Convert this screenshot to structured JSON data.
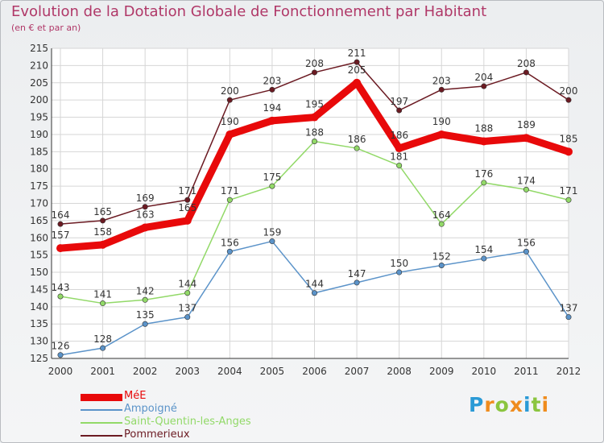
{
  "title": "Evolution de la Dotation Globale de Fonctionnement par Habitant",
  "subtitle": "(en € et par an)",
  "logo": {
    "text": "Proxiti",
    "colors": [
      "#2a9ad6",
      "#ef8c1e",
      "#8bc53f",
      "#ef8c1e",
      "#2a9ad6",
      "#8bc53f",
      "#ef8c1e"
    ]
  },
  "chart_data": {
    "type": "line",
    "title": "Evolution de la Dotation Globale de Fonctionnement par Habitant",
    "subtitle": "(en € et par an)",
    "categories": [
      "2000",
      "2001",
      "2002",
      "2003",
      "2004",
      "2005",
      "2006",
      "2007",
      "2008",
      "2009",
      "2010",
      "2011",
      "2012"
    ],
    "ylim": [
      125,
      215
    ],
    "ytick_step": 5,
    "grid": true,
    "legend_position": "bottom-left",
    "series": [
      {
        "name": "MéE",
        "color": "#e8090a",
        "values": [
          157,
          158,
          163,
          165,
          190,
          194,
          195,
          205,
          186,
          190,
          188,
          189,
          185
        ]
      },
      {
        "name": "Ampoigné",
        "color": "#5b93c9",
        "values": [
          126,
          128,
          135,
          137,
          156,
          159,
          144,
          147,
          150,
          152,
          154,
          156,
          137
        ]
      },
      {
        "name": "Saint-Quentin-les-Anges",
        "color": "#92d968",
        "values": [
          143,
          141,
          142,
          144,
          171,
          175,
          188,
          186,
          181,
          164,
          176,
          174,
          171
        ]
      },
      {
        "name": "Pommerieux",
        "color": "#6b1a22",
        "values": [
          164,
          165,
          169,
          171,
          200,
          203,
          208,
          211,
          197,
          203,
          204,
          208,
          200
        ]
      }
    ]
  }
}
